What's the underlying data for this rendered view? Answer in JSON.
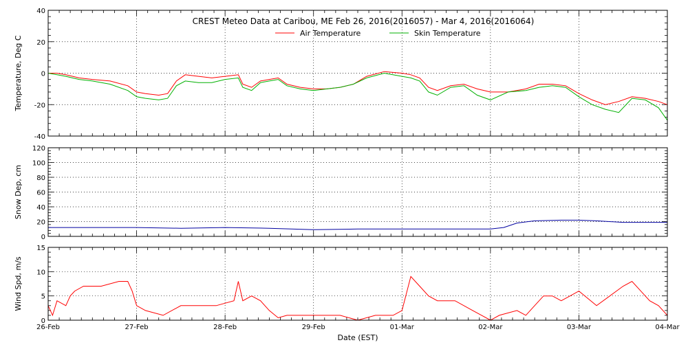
{
  "chart_data": {
    "type": "line",
    "title": "CREST Meteo Data at Caribou, ME   Feb 26, 2016(2016057) - Mar  4, 2016(2016064)",
    "xlabel": "Date (EST)",
    "x_range_days": [
      0,
      7
    ],
    "x_ticks": [
      {
        "day": 0,
        "label": "26-Feb"
      },
      {
        "day": 1,
        "label": "27-Feb"
      },
      {
        "day": 2,
        "label": "28-Feb"
      },
      {
        "day": 3,
        "label": "29-Feb"
      },
      {
        "day": 4,
        "label": "01-Mar"
      },
      {
        "day": 5,
        "label": "02-Mar"
      },
      {
        "day": 6,
        "label": "03-Mar"
      },
      {
        "day": 7,
        "label": "04-Mar"
      }
    ],
    "grid": true,
    "legend_position": "top-center",
    "panels": [
      {
        "ylabel": "Temperature, Deg C",
        "ylim": [
          -40,
          40
        ],
        "yticks": [
          40,
          20,
          0,
          -20,
          -40
        ],
        "series": [
          {
            "name": "Air Temperature",
            "color": "#ff0000",
            "x": [
              0,
              0.1,
              0.2,
              0.35,
              0.5,
              0.7,
              0.9,
              1.0,
              1.1,
              1.25,
              1.35,
              1.45,
              1.55,
              1.7,
              1.85,
              2.0,
              2.15,
              2.2,
              2.3,
              2.4,
              2.5,
              2.6,
              2.7,
              2.85,
              3.0,
              3.15,
              3.3,
              3.45,
              3.6,
              3.8,
              4.0,
              4.1,
              4.2,
              4.3,
              4.4,
              4.55,
              4.7,
              4.85,
              5.0,
              5.2,
              5.4,
              5.55,
              5.7,
              5.85,
              6.0,
              6.15,
              6.3,
              6.45,
              6.6,
              6.75,
              6.9,
              7.0
            ],
            "values": [
              0,
              0,
              -1,
              -3,
              -4,
              -5,
              -8,
              -12,
              -13,
              -14,
              -13,
              -5,
              -1,
              -2,
              -3,
              -2,
              -1,
              -7,
              -9,
              -5,
              -4,
              -3,
              -7,
              -9,
              -10,
              -10,
              -9,
              -7,
              -2,
              1,
              0,
              -1,
              -3,
              -9,
              -11,
              -8,
              -7,
              -10,
              -12,
              -12,
              -10,
              -7,
              -7,
              -8,
              -13,
              -17,
              -20,
              -18,
              -15,
              -16,
              -18,
              -20
            ]
          },
          {
            "name": "Skin Temperature",
            "color": "#00b000",
            "x": [
              0,
              0.1,
              0.2,
              0.35,
              0.5,
              0.7,
              0.9,
              1.0,
              1.1,
              1.25,
              1.35,
              1.45,
              1.55,
              1.7,
              1.85,
              2.0,
              2.15,
              2.2,
              2.3,
              2.4,
              2.5,
              2.6,
              2.7,
              2.85,
              3.0,
              3.15,
              3.3,
              3.45,
              3.6,
              3.8,
              4.0,
              4.1,
              4.2,
              4.3,
              4.4,
              4.55,
              4.7,
              4.85,
              5.0,
              5.2,
              5.4,
              5.55,
              5.7,
              5.85,
              6.0,
              6.15,
              6.3,
              6.45,
              6.6,
              6.75,
              6.9,
              7.0
            ],
            "values": [
              0,
              -1,
              -2,
              -4,
              -5,
              -7,
              -11,
              -15,
              -16,
              -17,
              -16,
              -8,
              -5,
              -6,
              -6,
              -4,
              -3,
              -9,
              -11,
              -6,
              -5,
              -4,
              -8,
              -10,
              -11,
              -10,
              -9,
              -7,
              -3,
              0,
              -2,
              -3,
              -5,
              -12,
              -14,
              -9,
              -8,
              -14,
              -17,
              -12,
              -11,
              -9,
              -8,
              -9,
              -15,
              -20,
              -23,
              -25,
              -16,
              -17,
              -22,
              -30
            ]
          }
        ]
      },
      {
        "ylabel": "Snow Dep, cm",
        "ylim": [
          0,
          120
        ],
        "yticks": [
          0,
          20,
          40,
          60,
          80,
          100,
          120
        ],
        "series": [
          {
            "name": "",
            "color": "#0000a0",
            "x": [
              0,
              0.5,
              1.0,
              1.5,
              2.0,
              2.5,
              3.0,
              3.5,
              4.0,
              4.5,
              5.0,
              5.15,
              5.3,
              5.5,
              5.8,
              6.0,
              6.2,
              6.5,
              7.0
            ],
            "values": [
              12,
              12,
              12,
              11,
              12,
              11,
              9,
              10,
              10,
              10,
              10,
              12,
              18,
              21,
              22,
              22,
              21,
              19,
              19
            ]
          }
        ]
      },
      {
        "ylabel": "Wind Spd, m/s",
        "ylim": [
          0,
          15
        ],
        "yticks": [
          0,
          5,
          10,
          15
        ],
        "series": [
          {
            "name": "",
            "color": "#ff0000",
            "x": [
              0,
              0.05,
              0.1,
              0.2,
              0.25,
              0.3,
              0.4,
              0.6,
              0.8,
              0.9,
              0.95,
              1.0,
              1.1,
              1.3,
              1.5,
              1.7,
              1.9,
              2.1,
              2.15,
              2.2,
              2.3,
              2.4,
              2.5,
              2.6,
              2.7,
              2.8,
              2.9,
              3.1,
              3.3,
              3.5,
              3.7,
              3.9,
              4.0,
              4.1,
              4.2,
              4.3,
              4.4,
              4.6,
              4.8,
              4.9,
              5.0,
              5.1,
              5.3,
              5.4,
              5.5,
              5.6,
              5.7,
              5.8,
              5.9,
              6.0,
              6.2,
              6.35,
              6.5,
              6.6,
              6.7,
              6.8,
              6.9,
              7.0
            ],
            "values": [
              3,
              1,
              4,
              3,
              5,
              6,
              7,
              7,
              8,
              8,
              6,
              3,
              2,
              1,
              3,
              3,
              3,
              4,
              8,
              4,
              5,
              4,
              2,
              0.5,
              1,
              1,
              1,
              1,
              1,
              0,
              1,
              1,
              2,
              9,
              7,
              5,
              4,
              4,
              2,
              1,
              0,
              1,
              2,
              1,
              3,
              5,
              5,
              4,
              5,
              6,
              3,
              5,
              7,
              8,
              6,
              4,
              3,
              1
            ]
          }
        ]
      }
    ]
  }
}
